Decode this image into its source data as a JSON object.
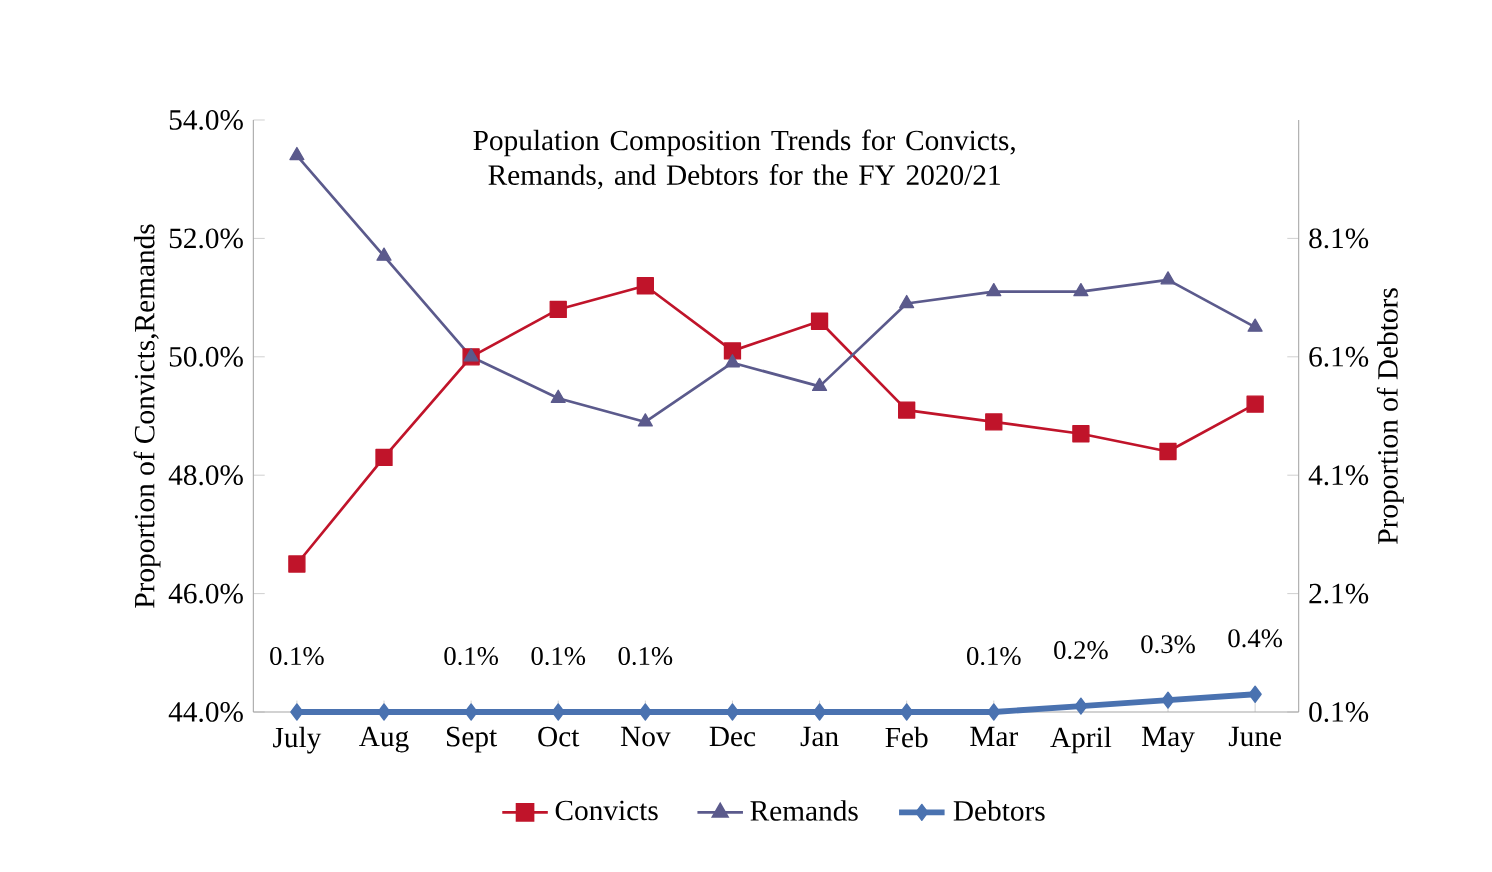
{
  "chart_data": {
    "type": "line",
    "title": "Population Composition Trends for Convicts, Remands, and Debtors for the FY 2020/21",
    "ylabel": "Proportion of Convicts,Remands",
    "y2label": "Proportion of Debtors",
    "categories": [
      "July",
      "Aug",
      "Sept",
      "Oct",
      "Nov",
      "Dec",
      "Jan",
      "Feb",
      "Mar",
      "April",
      "May",
      "June"
    ],
    "series": [
      {
        "name": "Convicts",
        "color": "#c0142a",
        "marker": "square",
        "values": [
          46.5,
          48.3,
          50.0,
          50.8,
          51.2,
          50.1,
          50.6,
          49.1,
          48.9,
          48.7,
          48.4,
          49.2
        ]
      },
      {
        "name": "Remands",
        "color": "#5b5a8c",
        "marker": "triangle",
        "values": [
          53.4,
          51.7,
          50.0,
          49.3,
          48.9,
          49.9,
          49.5,
          50.9,
          51.1,
          51.1,
          51.3,
          50.5
        ]
      },
      {
        "name": "Debtors",
        "color": "#4a72b0",
        "marker": "diamond",
        "axis": "y2",
        "values": [
          0.1,
          0.1,
          0.1,
          0.1,
          0.1,
          0.1,
          0.1,
          0.1,
          0.1,
          0.2,
          0.3,
          0.4
        ],
        "value_labels": [
          "0.1%",
          null,
          "0.1%",
          "0.1%",
          "0.1%",
          null,
          null,
          null,
          "0.1%",
          "0.2%",
          "0.3%",
          "0.4%"
        ]
      }
    ],
    "ylim": [
      44,
      54
    ],
    "yticks": [
      {
        "value": 44,
        "label": "44.0%"
      },
      {
        "value": 46,
        "label": "46.0%"
      },
      {
        "value": 48,
        "label": "48.0%"
      },
      {
        "value": 50,
        "label": "50.0%"
      },
      {
        "value": 52,
        "label": "52.0%"
      },
      {
        "value": 54,
        "label": "54.0%"
      }
    ],
    "y2lim": [
      0.1,
      10.1
    ],
    "y2ticks": [
      {
        "value": 0.1,
        "label": "0.1%"
      },
      {
        "value": 2.1,
        "label": "2.1%"
      },
      {
        "value": 4.1,
        "label": "4.1%"
      },
      {
        "value": 6.1,
        "label": "6.1%"
      },
      {
        "value": 8.1,
        "label": "8.1%"
      }
    ],
    "legend": "bottom",
    "grid": false,
    "line_style": "solid"
  }
}
